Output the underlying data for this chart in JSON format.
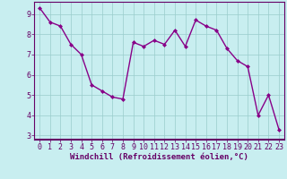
{
  "x": [
    0,
    1,
    2,
    3,
    4,
    5,
    6,
    7,
    8,
    9,
    10,
    11,
    12,
    13,
    14,
    15,
    16,
    17,
    18,
    19,
    20,
    21,
    22,
    23
  ],
  "y": [
    9.3,
    8.6,
    8.4,
    7.5,
    7.0,
    5.5,
    5.2,
    4.9,
    4.8,
    7.6,
    7.4,
    7.7,
    7.5,
    8.2,
    7.4,
    8.7,
    8.4,
    8.2,
    7.3,
    6.7,
    6.4,
    4.0,
    5.0,
    3.3
  ],
  "line_color": "#880088",
  "marker": "D",
  "marker_size": 2.0,
  "linewidth": 1.0,
  "xlabel": "Windchill (Refroidissement éolien,°C)",
  "ylabel": "",
  "xlim": [
    -0.5,
    23.5
  ],
  "ylim": [
    2.8,
    9.6
  ],
  "yticks": [
    3,
    4,
    5,
    6,
    7,
    8,
    9
  ],
  "xticks": [
    0,
    1,
    2,
    3,
    4,
    5,
    6,
    7,
    8,
    9,
    10,
    11,
    12,
    13,
    14,
    15,
    16,
    17,
    18,
    19,
    20,
    21,
    22,
    23
  ],
  "bg_color": "#c8eef0",
  "grid_color": "#99cccc",
  "spine_color": "#660066",
  "tick_label_color": "#660066",
  "axis_label_color": "#660066",
  "xlabel_fontsize": 6.5,
  "tick_fontsize": 6.0,
  "bottom_bar_color": "#6600aa"
}
